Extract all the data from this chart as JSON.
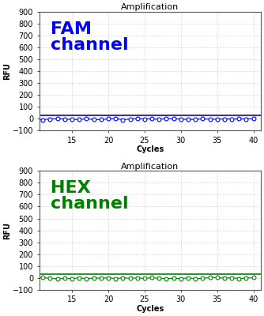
{
  "title": "Amplification",
  "xlabel": "Cycles",
  "ylabel": "RFU",
  "xlim": [
    10.5,
    41
  ],
  "ylim": [
    -100,
    900
  ],
  "yticks": [
    -100,
    0,
    100,
    200,
    300,
    400,
    500,
    600,
    700,
    800,
    900
  ],
  "xticks": [
    15,
    20,
    25,
    30,
    35,
    40
  ],
  "cycles_start": 10,
  "cycles_end": 40,
  "fam_color": "#0000FF",
  "hex_color": "#008000",
  "fam_label": "FAM\nchannel",
  "hex_label": "HEX\nchannel",
  "fam_label_color": "#0000FF",
  "hex_label_color": "#008000",
  "threshold_y": 30,
  "background_color": "#ffffff",
  "grid_color": "#bbbbbb",
  "label_fontsize": 16,
  "axis_fontsize": 7,
  "title_fontsize": 8,
  "tick_fontsize": 7
}
